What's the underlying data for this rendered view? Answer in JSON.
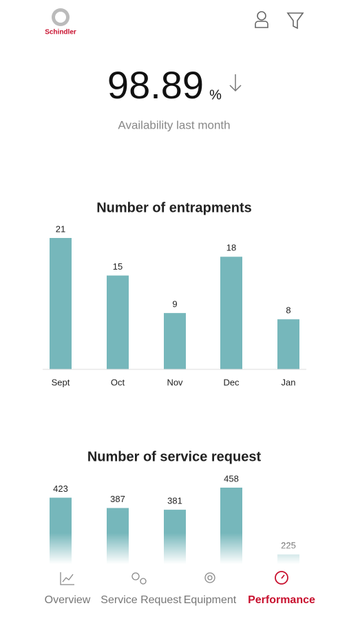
{
  "header": {
    "brand": "Schindler"
  },
  "kpi": {
    "value": "98.89",
    "unit": "%",
    "label": "Availability last month"
  },
  "chart_data": [
    {
      "type": "bar",
      "title": "Number of entrapments",
      "categories": [
        "Sept",
        "Oct",
        "Nov",
        "Dec",
        "Jan"
      ],
      "values": [
        21,
        15,
        9,
        18,
        8
      ],
      "color": "#76b7bb"
    },
    {
      "type": "bar",
      "title": "Number of service request",
      "values": [
        423,
        387,
        381,
        458,
        225
      ],
      "color": "#76b7bb"
    }
  ],
  "nav": {
    "items": [
      "Overview",
      "Service Request",
      "Equipment",
      "Performance"
    ],
    "active": 3
  }
}
